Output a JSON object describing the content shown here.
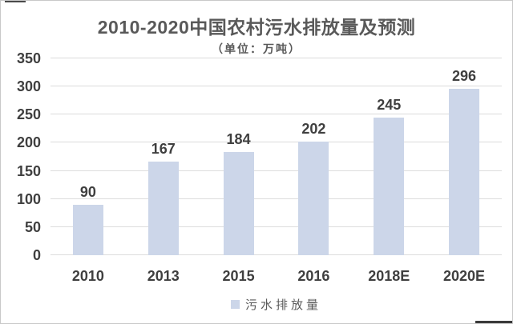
{
  "chart_data": {
    "type": "bar",
    "title": "2010-2020中国农村污水排放量及预测",
    "subtitle": "（单位：万吨）",
    "categories": [
      "2010",
      "2013",
      "2015",
      "2016",
      "2018E",
      "2020E"
    ],
    "series": [
      {
        "name": "污水排放量",
        "values": [
          90,
          167,
          184,
          202,
          245,
          296
        ],
        "color": "#ccd6e9"
      }
    ],
    "ylim": [
      0,
      350
    ],
    "ytick_step": 50,
    "yticks": [
      0,
      50,
      100,
      150,
      200,
      250,
      300,
      350
    ],
    "grid": true,
    "data_labels": true,
    "legend_position": "bottom"
  },
  "colors": {
    "bar_fill": "#ccd6e9",
    "gridline": "#dcdcdc",
    "axis_text": "#3f3f3f",
    "title_text": "#595959",
    "legend_text": "#595959",
    "frame_border": "#c9c9c9"
  }
}
